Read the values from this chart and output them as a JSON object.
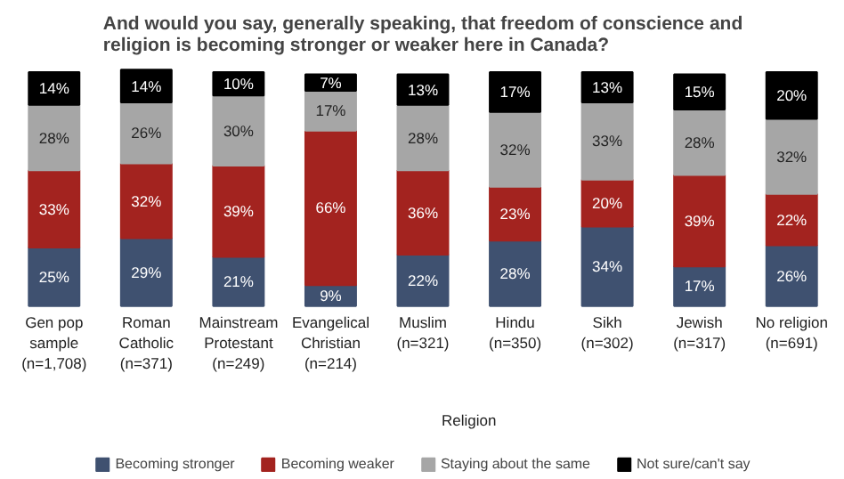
{
  "chart_data": {
    "type": "bar",
    "stacked": true,
    "title": "And would you say, generally speaking, that freedom of conscience and religion is becoming stronger or weaker here in Canada?",
    "categories": [
      "Gen pop sample (n=1,708)",
      "Roman Catholic (n=371)",
      "Mainstream Protestant (n=249)",
      "Evangelical Christian (n=214)",
      "Muslim (n=321)",
      "Hindu (n=350)",
      "Sikh (n=302)",
      "Jewish (n=317)",
      "No religion (n=691)"
    ],
    "series": [
      {
        "name": "Becoming stronger",
        "color": "#3f5170",
        "values": [
          25,
          29,
          21,
          9,
          22,
          28,
          34,
          17,
          26
        ],
        "value_labels": [
          "25%",
          "29%",
          "21%",
          "9%",
          "22%",
          "28%",
          "34%",
          "17%",
          "26%"
        ]
      },
      {
        "name": "Becoming weaker",
        "color": "#a3231f",
        "values": [
          33,
          32,
          39,
          66,
          36,
          23,
          20,
          39,
          22
        ],
        "value_labels": [
          "33%",
          "32%",
          "39%",
          "66%",
          "36%",
          "23%",
          "20%",
          "39%",
          "22%"
        ]
      },
      {
        "name": "Staying about the same",
        "color": "#a6a6a6",
        "values": [
          28,
          26,
          30,
          17,
          28,
          32,
          33,
          28,
          32
        ],
        "value_labels": [
          "28%",
          "26%",
          "30%",
          "17%",
          "28%",
          "32%",
          "33%",
          "28%",
          "32%"
        ]
      },
      {
        "name": "Not sure/can't say",
        "color": "#000000",
        "values": [
          14,
          14,
          10,
          7,
          13,
          17,
          13,
          15,
          20
        ],
        "value_labels": [
          "14%",
          "14%",
          "10%",
          "7%",
          "13%",
          "17%",
          "13%",
          "15%",
          "20%"
        ]
      }
    ],
    "annotations": [
      "Religion"
    ],
    "legend": "bottom"
  }
}
